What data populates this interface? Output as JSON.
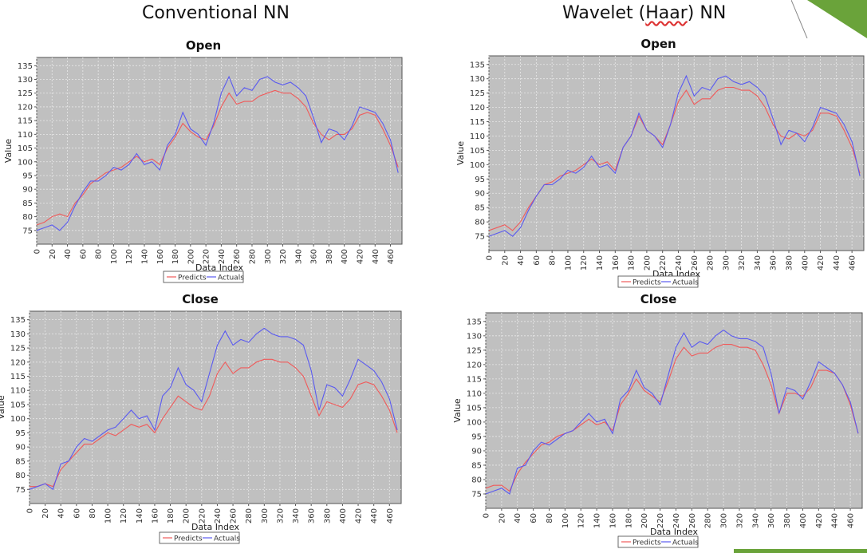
{
  "headings": {
    "left": "Conventional NN",
    "right_prefix": "Wavelet (",
    "right_haar": "Haar",
    "right_suffix": ") NN"
  },
  "legend": {
    "predicts": "Predicts",
    "actuals": "Actuals"
  },
  "colors": {
    "plot_bg": "#c0c0c0",
    "predicts": "#f05a5a",
    "actuals": "#5a5af0",
    "grid": "#e8e8e8",
    "accent": "#6aa33a"
  },
  "chart_data": [
    {
      "type": "line",
      "title": "Open",
      "xlabel": "Data Index",
      "ylabel": "Value",
      "xlim": [
        0,
        475
      ],
      "ylim": [
        70,
        138
      ],
      "xticks": [
        0,
        20,
        40,
        60,
        80,
        100,
        120,
        140,
        160,
        180,
        200,
        220,
        240,
        260,
        280,
        300,
        320,
        340,
        360,
        380,
        400,
        420,
        440,
        460
      ],
      "yticks": [
        75,
        80,
        85,
        90,
        95,
        100,
        105,
        110,
        115,
        120,
        125,
        130,
        135
      ],
      "legend_position": "bottom-center",
      "grid": true,
      "series": [
        {
          "name": "Predicts",
          "color": "#f05a5a",
          "x": [
            0,
            10,
            20,
            30,
            40,
            50,
            60,
            70,
            80,
            90,
            100,
            110,
            120,
            130,
            140,
            150,
            160,
            170,
            180,
            190,
            200,
            210,
            220,
            230,
            240,
            250,
            260,
            270,
            280,
            290,
            300,
            310,
            320,
            330,
            340,
            350,
            360,
            370,
            380,
            390,
            400,
            410,
            420,
            430,
            440,
            450,
            460,
            470
          ],
          "values": [
            77,
            78,
            80,
            81,
            80,
            85,
            88,
            92,
            94,
            96,
            97,
            98,
            100,
            102,
            100,
            101,
            99,
            105,
            109,
            114,
            111,
            109,
            108,
            113,
            120,
            125,
            121,
            122,
            122,
            124,
            125,
            126,
            125,
            125,
            123,
            120,
            114,
            110,
            108,
            110,
            110,
            112,
            117,
            118,
            117,
            112,
            106,
            98
          ]
        },
        {
          "name": "Actuals",
          "color": "#5a5af0",
          "x": [
            0,
            10,
            20,
            30,
            40,
            50,
            60,
            70,
            80,
            90,
            100,
            110,
            120,
            130,
            140,
            150,
            160,
            170,
            180,
            190,
            200,
            210,
            220,
            230,
            240,
            250,
            260,
            270,
            280,
            290,
            300,
            310,
            320,
            330,
            340,
            350,
            360,
            370,
            380,
            390,
            400,
            410,
            420,
            430,
            440,
            450,
            460,
            470
          ],
          "values": [
            75,
            76,
            77,
            75,
            78,
            84,
            89,
            93,
            93,
            95,
            98,
            97,
            99,
            103,
            99,
            100,
            97,
            106,
            110,
            118,
            112,
            110,
            106,
            114,
            125,
            131,
            124,
            127,
            126,
            130,
            131,
            129,
            128,
            129,
            127,
            124,
            116,
            107,
            112,
            111,
            108,
            113,
            120,
            119,
            118,
            114,
            108,
            96
          ]
        }
      ]
    },
    {
      "type": "line",
      "title": "Open",
      "xlabel": "Data Index",
      "ylabel": "Value",
      "xlim": [
        0,
        475
      ],
      "ylim": [
        70,
        138
      ],
      "xticks": [
        0,
        20,
        40,
        60,
        80,
        100,
        120,
        140,
        160,
        180,
        200,
        220,
        240,
        260,
        280,
        300,
        320,
        340,
        360,
        380,
        400,
        420,
        440,
        460
      ],
      "yticks": [
        75,
        80,
        85,
        90,
        95,
        100,
        105,
        110,
        115,
        120,
        125,
        130,
        135
      ],
      "legend_position": "bottom-center",
      "grid": true,
      "series": [
        {
          "name": "Predicts",
          "color": "#f05a5a",
          "x": [
            0,
            10,
            20,
            30,
            40,
            50,
            60,
            70,
            80,
            90,
            100,
            110,
            120,
            130,
            140,
            150,
            160,
            170,
            180,
            190,
            200,
            210,
            220,
            230,
            240,
            250,
            260,
            270,
            280,
            290,
            300,
            310,
            320,
            330,
            340,
            350,
            360,
            370,
            380,
            390,
            400,
            410,
            420,
            430,
            440,
            450,
            460,
            470
          ],
          "values": [
            77,
            78,
            79,
            77,
            80,
            85,
            89,
            93,
            94,
            96,
            97,
            98,
            100,
            102,
            100,
            101,
            98,
            106,
            110,
            117,
            112,
            110,
            107,
            114,
            122,
            126,
            121,
            123,
            123,
            126,
            127,
            127,
            126,
            126,
            124,
            120,
            114,
            110,
            109,
            111,
            110,
            112,
            118,
            118,
            117,
            112,
            106,
            97
          ]
        },
        {
          "name": "Actuals",
          "color": "#5a5af0",
          "x": [
            0,
            10,
            20,
            30,
            40,
            50,
            60,
            70,
            80,
            90,
            100,
            110,
            120,
            130,
            140,
            150,
            160,
            170,
            180,
            190,
            200,
            210,
            220,
            230,
            240,
            250,
            260,
            270,
            280,
            290,
            300,
            310,
            320,
            330,
            340,
            350,
            360,
            370,
            380,
            390,
            400,
            410,
            420,
            430,
            440,
            450,
            460,
            470
          ],
          "values": [
            75,
            76,
            77,
            75,
            78,
            84,
            89,
            93,
            93,
            95,
            98,
            97,
            99,
            103,
            99,
            100,
            97,
            106,
            110,
            118,
            112,
            110,
            106,
            114,
            125,
            131,
            124,
            127,
            126,
            130,
            131,
            129,
            128,
            129,
            127,
            124,
            116,
            107,
            112,
            111,
            108,
            113,
            120,
            119,
            118,
            114,
            108,
            96
          ]
        }
      ]
    },
    {
      "type": "line",
      "title": "Close",
      "xlabel": "Data Index",
      "ylabel": "Value",
      "xlim": [
        0,
        475
      ],
      "ylim": [
        70,
        138
      ],
      "xticks": [
        0,
        20,
        40,
        60,
        80,
        100,
        120,
        140,
        160,
        180,
        200,
        220,
        240,
        260,
        280,
        300,
        320,
        340,
        360,
        380,
        400,
        420,
        440,
        460
      ],
      "yticks": [
        75,
        80,
        85,
        90,
        95,
        100,
        105,
        110,
        115,
        120,
        125,
        130,
        135
      ],
      "legend_position": "bottom-center",
      "grid": true,
      "series": [
        {
          "name": "Predicts",
          "color": "#f05a5a",
          "x": [
            0,
            10,
            20,
            30,
            40,
            50,
            60,
            70,
            80,
            90,
            100,
            110,
            120,
            130,
            140,
            150,
            160,
            170,
            180,
            190,
            200,
            210,
            220,
            230,
            240,
            250,
            260,
            270,
            280,
            290,
            300,
            310,
            320,
            330,
            340,
            350,
            360,
            370,
            380,
            390,
            400,
            410,
            420,
            430,
            440,
            450,
            460,
            470
          ],
          "values": [
            76,
            76,
            77,
            76,
            82,
            85,
            88,
            91,
            91,
            93,
            95,
            94,
            96,
            98,
            97,
            98,
            95,
            100,
            104,
            108,
            106,
            104,
            103,
            108,
            116,
            120,
            116,
            118,
            118,
            120,
            121,
            121,
            120,
            120,
            118,
            115,
            108,
            101,
            106,
            105,
            104,
            107,
            112,
            113,
            112,
            108,
            103,
            95
          ]
        },
        {
          "name": "Actuals",
          "color": "#5a5af0",
          "x": [
            0,
            10,
            20,
            30,
            40,
            50,
            60,
            70,
            80,
            90,
            100,
            110,
            120,
            130,
            140,
            150,
            160,
            170,
            180,
            190,
            200,
            210,
            220,
            230,
            240,
            250,
            260,
            270,
            280,
            290,
            300,
            310,
            320,
            330,
            340,
            350,
            360,
            370,
            380,
            390,
            400,
            410,
            420,
            430,
            440,
            450,
            460,
            470
          ],
          "values": [
            75,
            76,
            77,
            75,
            84,
            85,
            90,
            93,
            92,
            94,
            96,
            97,
            100,
            103,
            100,
            101,
            96,
            108,
            111,
            118,
            112,
            110,
            106,
            116,
            126,
            131,
            126,
            128,
            127,
            130,
            132,
            130,
            129,
            129,
            128,
            126,
            117,
            103,
            112,
            111,
            108,
            114,
            121,
            119,
            117,
            113,
            107,
            96
          ]
        }
      ]
    },
    {
      "type": "line",
      "title": "Close",
      "xlabel": "Data Index",
      "ylabel": "Value",
      "xlim": [
        0,
        475
      ],
      "ylim": [
        70,
        138
      ],
      "xticks": [
        0,
        20,
        40,
        60,
        80,
        100,
        120,
        140,
        160,
        180,
        200,
        220,
        240,
        260,
        280,
        300,
        320,
        340,
        360,
        380,
        400,
        420,
        440,
        460
      ],
      "yticks": [
        75,
        80,
        85,
        90,
        95,
        100,
        105,
        110,
        115,
        120,
        125,
        130,
        135
      ],
      "legend_position": "bottom-center",
      "grid": true,
      "series": [
        {
          "name": "Predicts",
          "color": "#f05a5a",
          "x": [
            0,
            10,
            20,
            30,
            40,
            50,
            60,
            70,
            80,
            90,
            100,
            110,
            120,
            130,
            140,
            150,
            160,
            170,
            180,
            190,
            200,
            210,
            220,
            230,
            240,
            250,
            260,
            270,
            280,
            290,
            300,
            310,
            320,
            330,
            340,
            350,
            360,
            370,
            380,
            390,
            400,
            410,
            420,
            430,
            440,
            450,
            460,
            470
          ],
          "values": [
            77,
            78,
            78,
            76,
            82,
            86,
            89,
            92,
            93,
            95,
            96,
            97,
            99,
            101,
            99,
            100,
            97,
            106,
            110,
            115,
            111,
            109,
            107,
            114,
            122,
            126,
            123,
            124,
            124,
            126,
            127,
            127,
            126,
            126,
            125,
            120,
            113,
            103,
            110,
            110,
            109,
            112,
            118,
            118,
            117,
            113,
            106,
            96
          ]
        },
        {
          "name": "Actuals",
          "color": "#5a5af0",
          "x": [
            0,
            10,
            20,
            30,
            40,
            50,
            60,
            70,
            80,
            90,
            100,
            110,
            120,
            130,
            140,
            150,
            160,
            170,
            180,
            190,
            200,
            210,
            220,
            230,
            240,
            250,
            260,
            270,
            280,
            290,
            300,
            310,
            320,
            330,
            340,
            350,
            360,
            370,
            380,
            390,
            400,
            410,
            420,
            430,
            440,
            450,
            460,
            470
          ],
          "values": [
            75,
            76,
            77,
            75,
            84,
            85,
            90,
            93,
            92,
            94,
            96,
            97,
            100,
            103,
            100,
            101,
            96,
            108,
            111,
            118,
            112,
            110,
            106,
            116,
            126,
            131,
            126,
            128,
            127,
            130,
            132,
            130,
            129,
            129,
            128,
            126,
            117,
            103,
            112,
            111,
            108,
            114,
            121,
            119,
            117,
            113,
            107,
            96
          ]
        }
      ]
    }
  ]
}
